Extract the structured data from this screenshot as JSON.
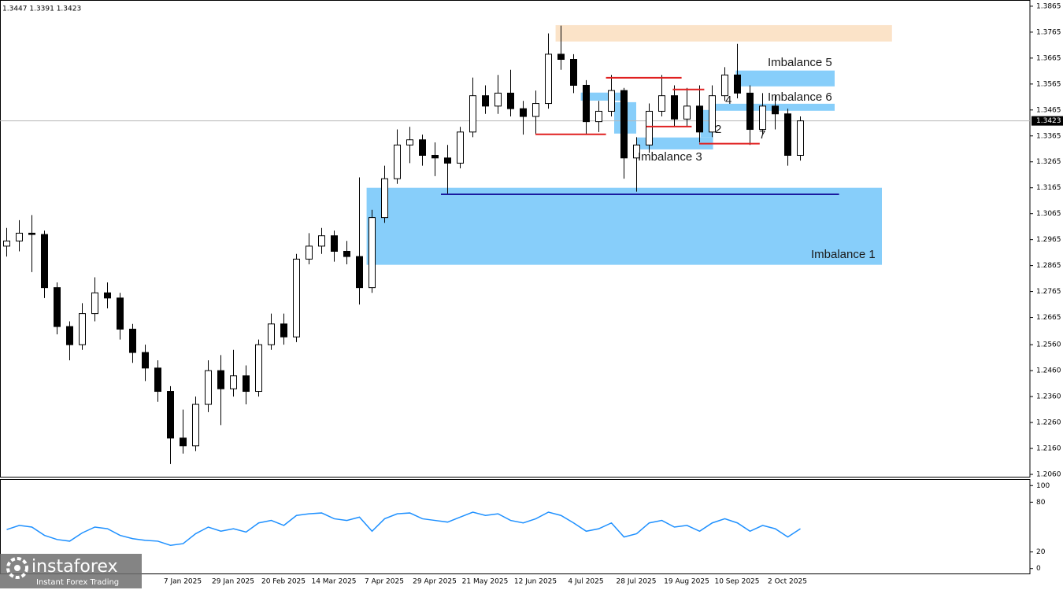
{
  "chart_data": [
    {
      "type": "candlestick",
      "header": "1.3447 1.3391 1.3423",
      "categories": [
        null,
        null,
        null,
        null,
        null,
        null,
        null,
        null,
        null,
        null,
        null,
        null,
        null,
        null,
        "7 Jan 2025",
        null,
        null,
        null,
        "29 Jan 2025",
        null,
        null,
        null,
        "20 Feb 2025",
        null,
        null,
        null,
        "14 Mar 2025",
        null,
        null,
        null,
        "7 Apr 2025",
        null,
        null,
        null,
        "29 Apr 2025",
        null,
        null,
        null,
        "21 May 2025",
        null,
        null,
        null,
        "12 Jun 2025",
        null,
        null,
        null,
        "4 Jul 2025",
        null,
        null,
        null,
        "28 Jul 2025",
        null,
        null,
        null,
        "19 Aug 2025",
        null,
        null,
        null,
        "10 Sep 2025",
        null,
        null,
        null,
        "2 Oct 2025",
        null
      ],
      "open": [
        1.294,
        1.296,
        1.299,
        1.2985,
        1.278,
        1.263,
        1.256,
        1.268,
        1.276,
        1.274,
        1.262,
        1.253,
        1.247,
        1.238,
        1.22,
        1.217,
        1.233,
        1.246,
        1.239,
        1.244,
        1.238,
        1.256,
        1.264,
        1.259,
        1.289,
        1.294,
        1.298,
        1.292,
        1.29,
        1.278,
        1.305,
        1.32,
        1.333,
        1.335,
        1.329,
        1.328,
        1.326,
        1.338,
        1.352,
        1.348,
        1.353,
        1.347,
        1.344,
        1.349,
        1.368,
        1.366,
        1.356,
        1.342,
        1.346,
        1.354,
        1.328,
        1.333,
        1.346,
        1.352,
        1.343,
        1.348,
        1.338,
        1.352,
        1.36,
        1.353,
        1.339,
        1.348,
        1.345,
        1.329
      ],
      "high": [
        1.301,
        1.304,
        1.306,
        1.3,
        1.28,
        1.265,
        1.272,
        1.282,
        1.28,
        1.276,
        1.264,
        1.256,
        1.25,
        1.24,
        1.231,
        1.236,
        1.25,
        1.252,
        1.254,
        1.248,
        1.258,
        1.268,
        1.268,
        1.291,
        1.299,
        1.301,
        1.3,
        1.296,
        1.3205,
        1.308,
        1.325,
        1.339,
        1.34,
        1.337,
        1.334,
        1.333,
        1.34,
        1.359,
        1.356,
        1.36,
        1.362,
        1.35,
        1.354,
        1.376,
        1.379,
        1.368,
        1.358,
        1.35,
        1.36,
        1.355,
        1.336,
        1.349,
        1.36,
        1.356,
        1.355,
        1.356,
        1.356,
        1.363,
        1.372,
        1.356,
        1.353,
        1.352,
        1.347,
        1.344
      ],
      "low": [
        1.29,
        1.292,
        1.284,
        1.274,
        1.26,
        1.25,
        1.254,
        1.265,
        1.27,
        1.258,
        1.249,
        1.242,
        1.234,
        1.21,
        1.214,
        1.215,
        1.23,
        1.225,
        1.236,
        1.233,
        1.236,
        1.254,
        1.256,
        1.257,
        1.287,
        1.291,
        1.288,
        1.287,
        1.2715,
        1.276,
        1.303,
        1.318,
        1.326,
        1.325,
        1.321,
        1.314,
        1.324,
        1.336,
        1.345,
        1.345,
        1.344,
        1.337,
        1.337,
        1.347,
        1.362,
        1.353,
        1.337,
        1.338,
        1.344,
        1.32,
        1.315,
        1.33,
        1.344,
        1.34,
        1.34,
        1.334,
        1.336,
        1.35,
        1.351,
        1.333,
        1.337,
        1.339,
        1.325,
        1.327
      ],
      "close": [
        1.296,
        1.299,
        1.2985,
        1.278,
        1.263,
        1.256,
        1.268,
        1.276,
        1.274,
        1.262,
        1.253,
        1.247,
        1.238,
        1.22,
        1.217,
        1.233,
        1.246,
        1.239,
        1.244,
        1.238,
        1.256,
        1.264,
        1.259,
        1.289,
        1.294,
        1.298,
        1.292,
        1.29,
        1.278,
        1.305,
        1.32,
        1.333,
        1.335,
        1.329,
        1.328,
        1.326,
        1.338,
        1.352,
        1.348,
        1.353,
        1.347,
        1.344,
        1.349,
        1.368,
        1.366,
        1.356,
        1.342,
        1.346,
        1.354,
        1.328,
        1.333,
        1.346,
        1.352,
        1.343,
        1.348,
        1.338,
        1.352,
        1.36,
        1.353,
        1.339,
        1.348,
        1.345,
        1.329,
        1.3423
      ],
      "ylim": [
        1.2051,
        1.3889
      ],
      "yticks": [
        1.3865,
        1.3765,
        1.3665,
        1.3565,
        1.3465,
        1.3365,
        1.3265,
        1.3165,
        1.3065,
        1.2965,
        1.2865,
        1.2765,
        1.2665,
        {
          "value": 1.256,
          "label": "1.2560"
        },
        {
          "value": 1.246,
          "label": "1.2460"
        },
        {
          "value": 1.236,
          "label": "1.2360"
        },
        {
          "value": 1.226,
          "label": "1.2260"
        },
        {
          "value": 1.216,
          "label": "1.2160"
        },
        {
          "value": 1.206,
          "label": "1.2060"
        }
      ],
      "zones": [
        {
          "color": "#fbe3c8",
          "top": 1.3792,
          "bottom": 1.3729,
          "start": 43.6,
          "end": 70.3
        },
        {
          "label": "Imbalance 1",
          "color": "#87cefa",
          "top": 1.3165,
          "bottom": 1.2868,
          "start": 28.6,
          "end": 69.5
        },
        {
          "label": "Imbalance 3",
          "color": "#87cefa",
          "top": 1.3359,
          "bottom": 1.3313,
          "start": 50,
          "end": 56.1
        },
        {
          "label": "Imbalance 5",
          "color": "#87cefa",
          "top": 1.3617,
          "bottom": 1.3556,
          "start": 57.9,
          "end": 65.75
        },
        {
          "label": "Imbalance 6",
          "color": "#87cefa",
          "top": 1.3489,
          "bottom": 1.3462,
          "start": 56.1,
          "end": 65.75
        },
        {
          "color": "#87cefa",
          "top": 1.3532,
          "bottom": 1.3501,
          "start": 45.6,
          "end": 49.1
        },
        {
          "color": "#87cefa",
          "top": 1.3495,
          "bottom": 1.3374,
          "start": 48.25,
          "end": 50
        },
        {
          "color": "#87cefa",
          "top": 1.3465,
          "bottom": 1.3359,
          "start": 55.1,
          "end": 56.1
        }
      ],
      "levels": [
        {
          "value": 1.314,
          "start": 34.5,
          "end": 66.1,
          "color": "#1a1aa0"
        },
        {
          "value": 1.3371,
          "start": 42,
          "end": 47.6,
          "color": "#e02020"
        },
        {
          "value": 1.3589,
          "start": 47.6,
          "end": 53.6,
          "color": "#e02020"
        },
        {
          "value": 1.3401,
          "start": 50.8,
          "end": 54.4,
          "color": "#e02020"
        },
        {
          "value": 1.3544,
          "start": 52.9,
          "end": 55.4,
          "color": "#e02020"
        },
        {
          "value": 1.3335,
          "start": 55,
          "end": 59.8,
          "color": "#e02020"
        }
      ],
      "annotations": [
        "2",
        "4",
        "7"
      ]
    },
    {
      "type": "line",
      "series": [
        {
          "color": "#1e90ff",
          "values": [
            47,
            52,
            50,
            40,
            35,
            33,
            43,
            50,
            48,
            40,
            36,
            34,
            33,
            28,
            30,
            42,
            50,
            45,
            48,
            44,
            55,
            58,
            52,
            64,
            66,
            67,
            60,
            58,
            62,
            45,
            60,
            66,
            67,
            60,
            58,
            56,
            62,
            68,
            64,
            66,
            58,
            55,
            60,
            68,
            64,
            55,
            45,
            48,
            55,
            38,
            42,
            55,
            58,
            50,
            52,
            45,
            55,
            60,
            55,
            45,
            52,
            48,
            38,
            48
          ]
        }
      ],
      "ylim": [
        -5,
        105
      ],
      "yticks": [
        0,
        20,
        80,
        100
      ]
    }
  ],
  "watermark": {
    "brand": "instaforex",
    "tagline": "Instant Forex Trading"
  }
}
